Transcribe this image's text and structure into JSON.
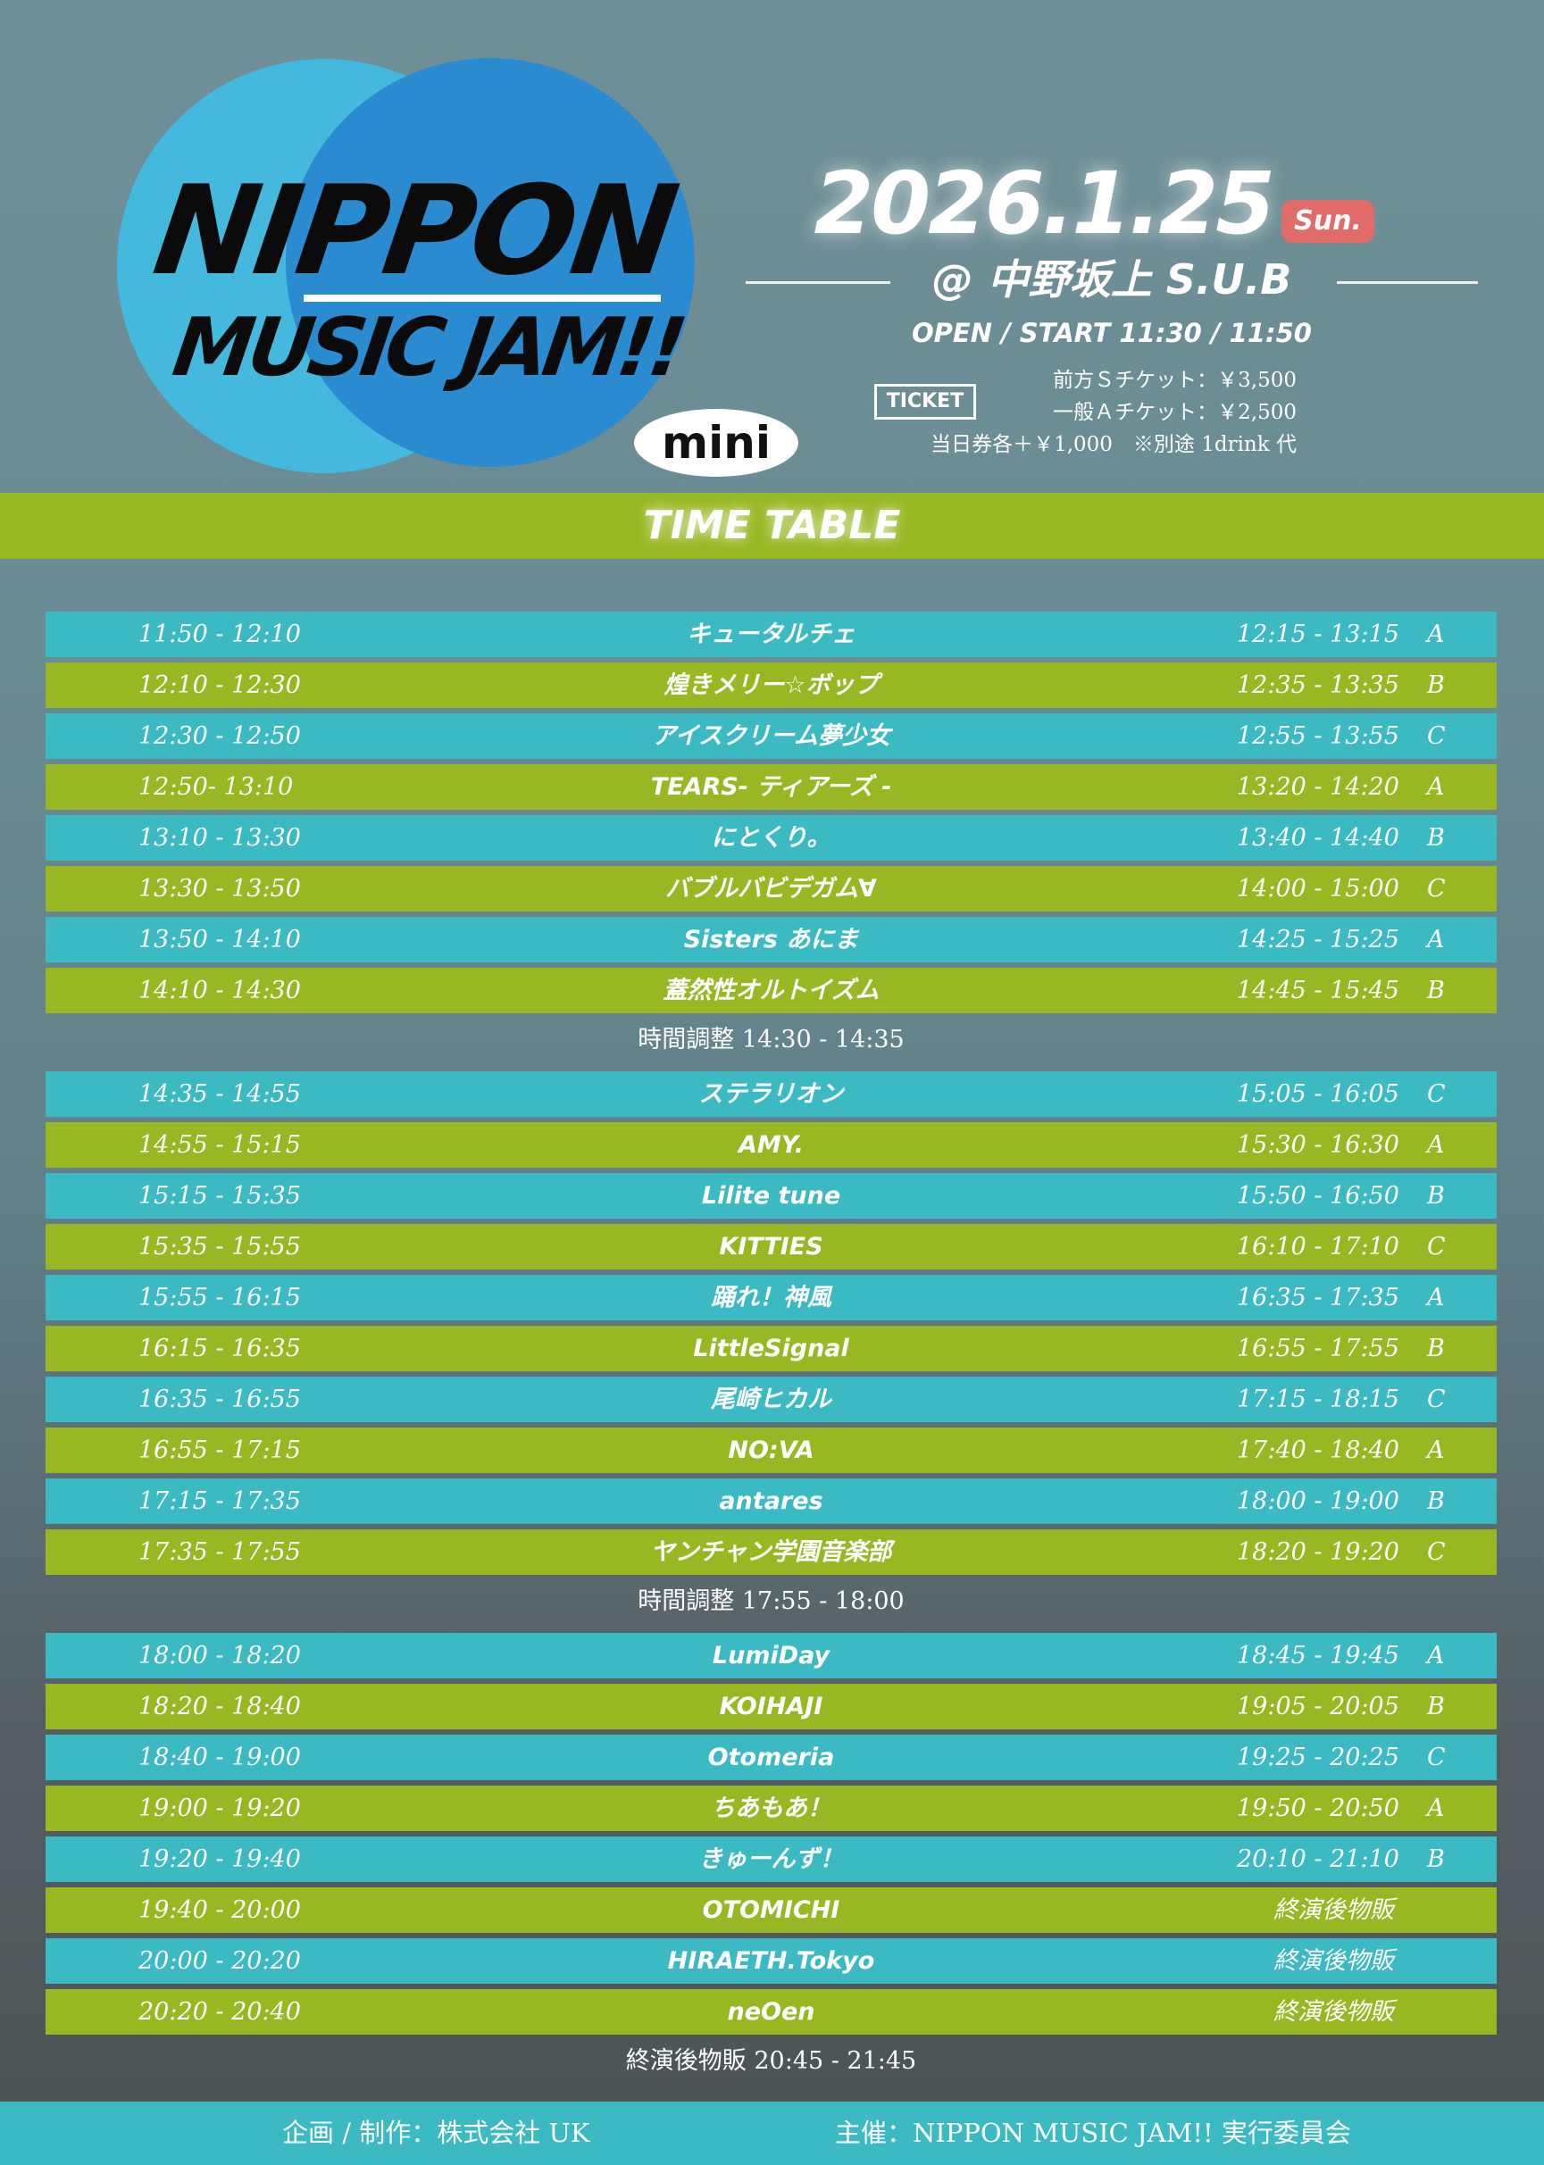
{
  "logo": {
    "line1": "NIPPON",
    "line2": "MUSIC JAM!!",
    "badge": "mini"
  },
  "event": {
    "date": "2026.1.25",
    "weekday": "Sun.",
    "venue": "@ 中野坂上 S.U.B",
    "open_start": "OPEN / START  11:30 / 11:50"
  },
  "ticket": {
    "label": "TICKET",
    "prices": [
      "前方Ｓチケット：￥3,500",
      "一般Ａチケット：￥2,500",
      "当日券各＋￥1,000　※別途 1drink 代"
    ]
  },
  "colors": {
    "cyan": "#3bbac4",
    "green": "#98b823",
    "sun_badge": "#e06b68"
  },
  "timetable": {
    "title": "TIME TABLE",
    "items": [
      {
        "time": "11:50 - 12:10",
        "name": "キュータルチェ",
        "sale": "12:15 - 13:15",
        "stage": "A"
      },
      {
        "time": "12:10 - 12:30",
        "name": "煌きメリー☆ボップ",
        "sale": "12:35 - 13:35",
        "stage": "B"
      },
      {
        "time": "12:30 - 12:50",
        "name": "アイスクリーム夢少女",
        "sale": "12:55 - 13:55",
        "stage": "C"
      },
      {
        "time": "12:50- 13:10",
        "name": "TEARS- ティアーズ -",
        "sale": "13:20 - 14:20",
        "stage": "A"
      },
      {
        "time": "13:10 - 13:30",
        "name": "にとくり。",
        "sale": "13:40 - 14:40",
        "stage": "B"
      },
      {
        "time": "13:30 - 13:50",
        "name": "バブルバビデガム∀",
        "sale": "14:00 - 15:00",
        "stage": "C"
      },
      {
        "time": "13:50 - 14:10",
        "name": "Sisters あにま",
        "sale": "14:25 - 15:25",
        "stage": "A"
      },
      {
        "time": "14:10 - 14:30",
        "name": "蓋然性オルトイズム",
        "sale": "14:45 - 15:45",
        "stage": "B"
      },
      {
        "break": "時間調整 14:30 - 14:35"
      },
      {
        "time": "14:35 - 14:55",
        "name": "ステラリオン",
        "sale": "15:05 - 16:05",
        "stage": "C"
      },
      {
        "time": "14:55 - 15:15",
        "name": "AMY.",
        "sale": "15:30 - 16:30",
        "stage": "A"
      },
      {
        "time": "15:15 - 15:35",
        "name": "Lilite tune",
        "sale": "15:50 - 16:50",
        "stage": "B"
      },
      {
        "time": "15:35 - 15:55",
        "name": "KITTIES",
        "sale": "16:10 - 17:10",
        "stage": "C"
      },
      {
        "time": "15:55 - 16:15",
        "name": "踊れ！神風",
        "sale": "16:35 - 17:35",
        "stage": "A"
      },
      {
        "time": "16:15 - 16:35",
        "name": "LittleSignal",
        "sale": "16:55 - 17:55",
        "stage": "B"
      },
      {
        "time": "16:35 - 16:55",
        "name": "尾崎ヒカル",
        "sale": "17:15 - 18:15",
        "stage": "C"
      },
      {
        "time": "16:55 - 17:15",
        "name": "NO:VA",
        "sale": "17:40 - 18:40",
        "stage": "A"
      },
      {
        "time": "17:15 - 17:35",
        "name": "antares",
        "sale": "18:00 - 19:00",
        "stage": "B"
      },
      {
        "time": "17:35 - 17:55",
        "name": "ヤンチャン学園音楽部",
        "sale": "18:20 - 19:20",
        "stage": "C"
      },
      {
        "break": "時間調整 17:55 - 18:00"
      },
      {
        "time": "18:00 - 18:20",
        "name": "LumiDay",
        "sale": "18:45 - 19:45",
        "stage": "A"
      },
      {
        "time": "18:20 - 18:40",
        "name": "KOIHAJI",
        "sale": "19:05 - 20:05",
        "stage": "B"
      },
      {
        "time": "18:40 - 19:00",
        "name": "Otomeria",
        "sale": "19:25 - 20:25",
        "stage": "C"
      },
      {
        "time": "19:00 - 19:20",
        "name": "ちあもあ！",
        "sale": "19:50 - 20:50",
        "stage": "A"
      },
      {
        "time": "19:20 - 19:40",
        "name": "きゅーんず！",
        "sale": "20:10 - 21:10",
        "stage": "B"
      },
      {
        "time": "19:40 - 20:00",
        "name": "OTOMICHI",
        "sale": "終演後物販",
        "stage": ""
      },
      {
        "time": "20:00 - 20:20",
        "name": "HIRAETH.Tokyo",
        "sale": "終演後物販",
        "stage": ""
      },
      {
        "time": "20:20 - 20:40",
        "name": "neOen",
        "sale": "終演後物販",
        "stage": ""
      },
      {
        "break": "終演後物販 20:45 - 21:45"
      }
    ]
  },
  "footer": {
    "producer": "企画 / 制作：株式会社 UK",
    "organizer": "主催：NIPPON MUSIC JAM!! 実行委員会"
  }
}
